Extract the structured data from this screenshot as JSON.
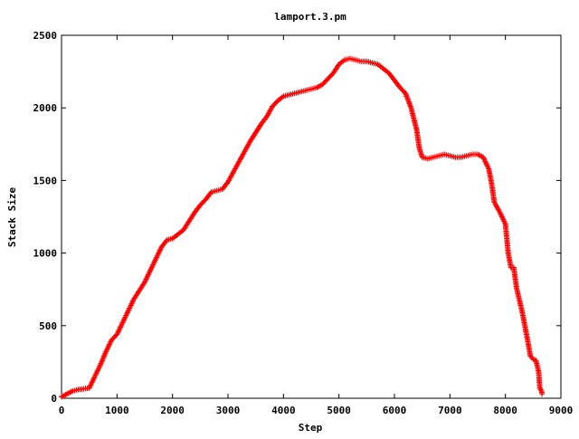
{
  "chart_data": {
    "type": "scatter",
    "title": "lamport.3.pm",
    "xlabel": "Step",
    "ylabel": "Stack Size",
    "xlim": [
      0,
      9000
    ],
    "ylim": [
      0,
      2500
    ],
    "xticks": [
      0,
      1000,
      2000,
      3000,
      4000,
      5000,
      6000,
      7000,
      8000,
      9000
    ],
    "yticks": [
      0,
      500,
      1000,
      1500,
      2000,
      2500
    ],
    "grid": false,
    "legend": "none",
    "marker": "+",
    "color": "#ff0000",
    "series": [
      {
        "points": [
          [
            0,
            10
          ],
          [
            100,
            30
          ],
          [
            200,
            50
          ],
          [
            300,
            60
          ],
          [
            400,
            65
          ],
          [
            500,
            70
          ],
          [
            600,
            150
          ],
          [
            700,
            230
          ],
          [
            800,
            320
          ],
          [
            900,
            400
          ],
          [
            1000,
            440
          ],
          [
            1100,
            520
          ],
          [
            1200,
            600
          ],
          [
            1300,
            680
          ],
          [
            1400,
            740
          ],
          [
            1500,
            800
          ],
          [
            1600,
            880
          ],
          [
            1700,
            960
          ],
          [
            1800,
            1040
          ],
          [
            1900,
            1090
          ],
          [
            2000,
            1100
          ],
          [
            2100,
            1130
          ],
          [
            2200,
            1160
          ],
          [
            2300,
            1220
          ],
          [
            2400,
            1280
          ],
          [
            2500,
            1330
          ],
          [
            2600,
            1370
          ],
          [
            2700,
            1420
          ],
          [
            2800,
            1430
          ],
          [
            2900,
            1440
          ],
          [
            3000,
            1490
          ],
          [
            3100,
            1560
          ],
          [
            3200,
            1630
          ],
          [
            3300,
            1700
          ],
          [
            3400,
            1770
          ],
          [
            3500,
            1830
          ],
          [
            3600,
            1890
          ],
          [
            3700,
            1940
          ],
          [
            3800,
            2010
          ],
          [
            3900,
            2050
          ],
          [
            4000,
            2080
          ],
          [
            4100,
            2090
          ],
          [
            4200,
            2100
          ],
          [
            4300,
            2110
          ],
          [
            4400,
            2120
          ],
          [
            4500,
            2130
          ],
          [
            4600,
            2140
          ],
          [
            4700,
            2160
          ],
          [
            4800,
            2200
          ],
          [
            4900,
            2240
          ],
          [
            5000,
            2300
          ],
          [
            5100,
            2330
          ],
          [
            5200,
            2340
          ],
          [
            5300,
            2330
          ],
          [
            5400,
            2320
          ],
          [
            5500,
            2320
          ],
          [
            5600,
            2310
          ],
          [
            5700,
            2300
          ],
          [
            5800,
            2270
          ],
          [
            5900,
            2240
          ],
          [
            6000,
            2190
          ],
          [
            6100,
            2140
          ],
          [
            6200,
            2100
          ],
          [
            6300,
            2000
          ],
          [
            6400,
            1850
          ],
          [
            6450,
            1720
          ],
          [
            6500,
            1660
          ],
          [
            6600,
            1650
          ],
          [
            6700,
            1660
          ],
          [
            6800,
            1670
          ],
          [
            6900,
            1680
          ],
          [
            7000,
            1670
          ],
          [
            7100,
            1660
          ],
          [
            7200,
            1660
          ],
          [
            7300,
            1670
          ],
          [
            7400,
            1680
          ],
          [
            7500,
            1680
          ],
          [
            7600,
            1660
          ],
          [
            7700,
            1580
          ],
          [
            7750,
            1480
          ],
          [
            7800,
            1350
          ],
          [
            7900,
            1280
          ],
          [
            8000,
            1200
          ],
          [
            8050,
            1000
          ],
          [
            8100,
            900
          ],
          [
            8150,
            900
          ],
          [
            8200,
            760
          ],
          [
            8250,
            680
          ],
          [
            8300,
            600
          ],
          [
            8350,
            500
          ],
          [
            8400,
            400
          ],
          [
            8450,
            290
          ],
          [
            8500,
            270
          ],
          [
            8550,
            260
          ],
          [
            8600,
            180
          ],
          [
            8620,
            70
          ],
          [
            8650,
            50
          ],
          [
            8660,
            30
          ]
        ]
      }
    ]
  }
}
